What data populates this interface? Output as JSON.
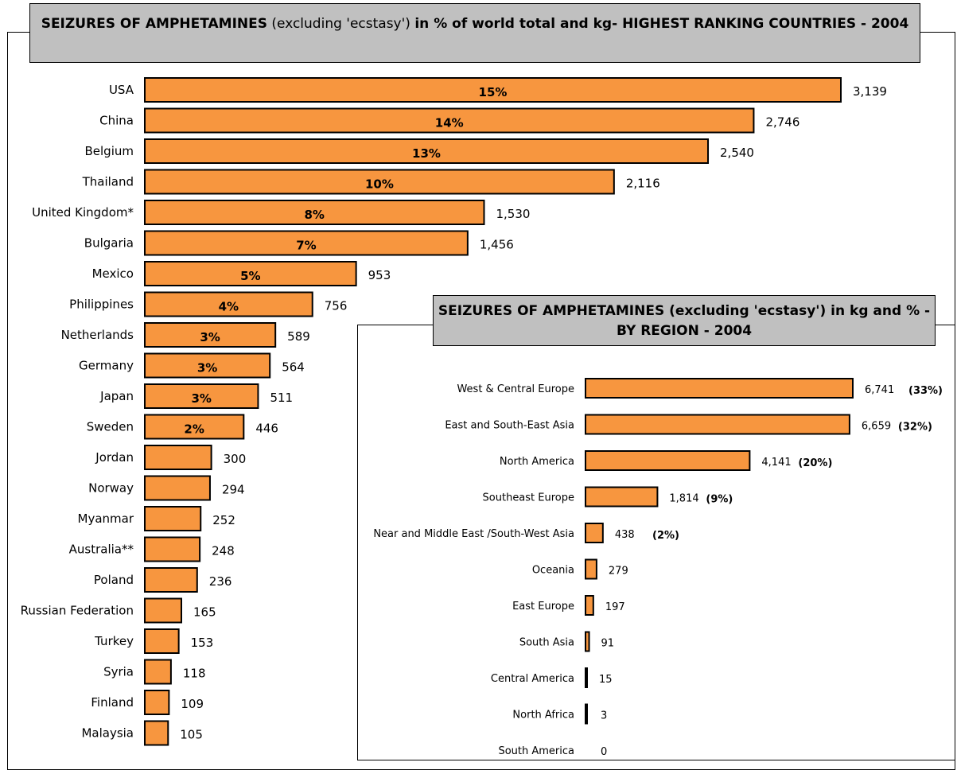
{
  "chart_data": [
    {
      "type": "bar",
      "orientation": "horizontal",
      "title_bold_1": "SEIZURES OF AMPHETAMINES",
      "title_normal": " (excluding 'ecstasy') ",
      "title_bold_2": " in % of world total and kg- HIGHEST RANKING COUNTRIES - 2004",
      "categories": [
        "USA",
        "China",
        "Belgium",
        "Thailand",
        "United Kingdom*",
        "Bulgaria",
        "Mexico",
        "Philippines",
        "Netherlands",
        "Germany",
        "Japan",
        "Sweden",
        "Jordan",
        "Norway",
        "Myanmar",
        "Australia**",
        "Poland",
        "Russian Federation",
        "Turkey",
        "Syria",
        "Finland",
        "Malaysia"
      ],
      "values": [
        3139,
        2746,
        2540,
        2116,
        1530,
        1456,
        953,
        756,
        589,
        564,
        511,
        446,
        300,
        294,
        252,
        248,
        236,
        165,
        153,
        118,
        109,
        105
      ],
      "value_labels": [
        "3,139",
        "2,746",
        "2,540",
        "2,116",
        "1,530",
        "1,456",
        "953",
        "756",
        "589",
        "564",
        "511",
        "446",
        "300",
        "294",
        "252",
        "248",
        "236",
        "165",
        "153",
        "118",
        "109",
        "105"
      ],
      "percent_labels": [
        "15%",
        "14%",
        "13%",
        "10%",
        "8%",
        "7%",
        "5%",
        "4%",
        "3%",
        "3%",
        "3%",
        "2%",
        "",
        "",
        "",
        "",
        "",
        "",
        "",
        "",
        "",
        ""
      ],
      "bar_color": "#f7963f"
    },
    {
      "type": "bar",
      "orientation": "horizontal",
      "title": "SEIZURES OF AMPHETAMINES (excluding 'ecstasy') in kg and % - BY REGION - 2004",
      "categories": [
        "West & Central Europe",
        "East and South-East Asia",
        "North America",
        "Southeast Europe",
        "Near and Middle East /South-West Asia",
        "Oceania",
        "East Europe",
        "South Asia",
        "Central America",
        "North Africa",
        "South America"
      ],
      "values": [
        6741,
        6659,
        4141,
        1814,
        438,
        279,
        197,
        91,
        15,
        3,
        0
      ],
      "value_labels": [
        "6,741",
        "6,659",
        "4,141",
        "1,814",
        "438",
        "279",
        "197",
        "91",
        "15",
        "3",
        "0"
      ],
      "percent_labels": [
        "(33%)",
        "(32%)",
        "(20%)",
        "(9%)",
        "(2%)",
        "",
        "",
        "",
        "",
        "",
        ""
      ],
      "bar_color": "#f7963f"
    }
  ]
}
